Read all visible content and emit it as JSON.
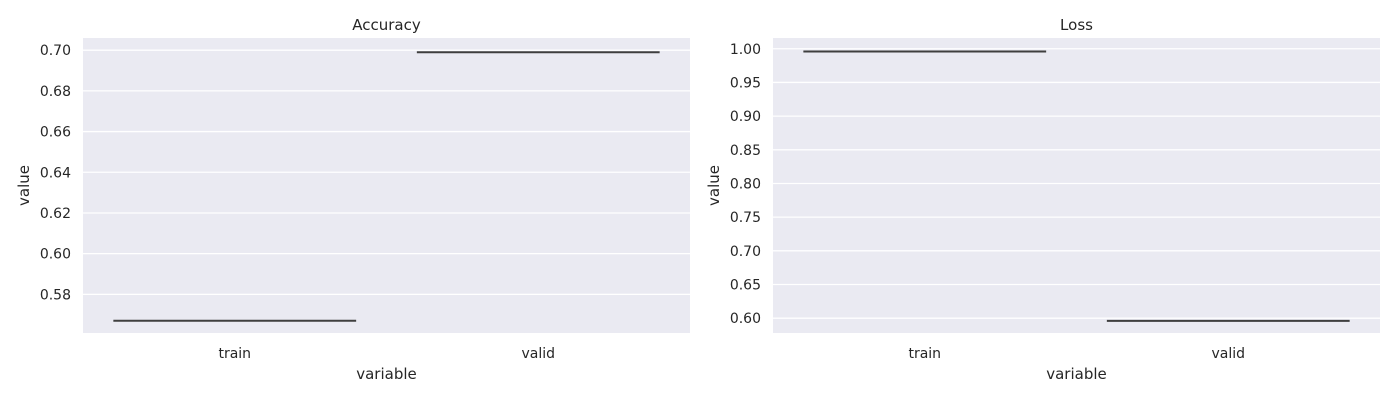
{
  "chart_data": [
    {
      "type": "boxplot",
      "title": "Accuracy",
      "xlabel": "variable",
      "ylabel": "value",
      "categories": [
        "train",
        "valid"
      ],
      "values": [
        0.567,
        0.699
      ],
      "ylim": [
        0.561,
        0.706
      ],
      "yticks": [
        "0.58",
        "0.60",
        "0.62",
        "0.64",
        "0.66",
        "0.68",
        "0.70"
      ],
      "grid": true
    },
    {
      "type": "boxplot",
      "title": "Loss",
      "xlabel": "variable",
      "ylabel": "value",
      "categories": [
        "train",
        "valid"
      ],
      "values": [
        0.996,
        0.596
      ],
      "ylim": [
        0.578,
        1.016
      ],
      "yticks": [
        "0.60",
        "0.65",
        "0.70",
        "0.75",
        "0.80",
        "0.85",
        "0.90",
        "0.95",
        "1.00"
      ],
      "grid": true
    }
  ],
  "colors": {
    "axes_bg": "#eaeaf2",
    "grid": "#ffffff",
    "line": "#3f3f3f",
    "text": "#262626"
  }
}
